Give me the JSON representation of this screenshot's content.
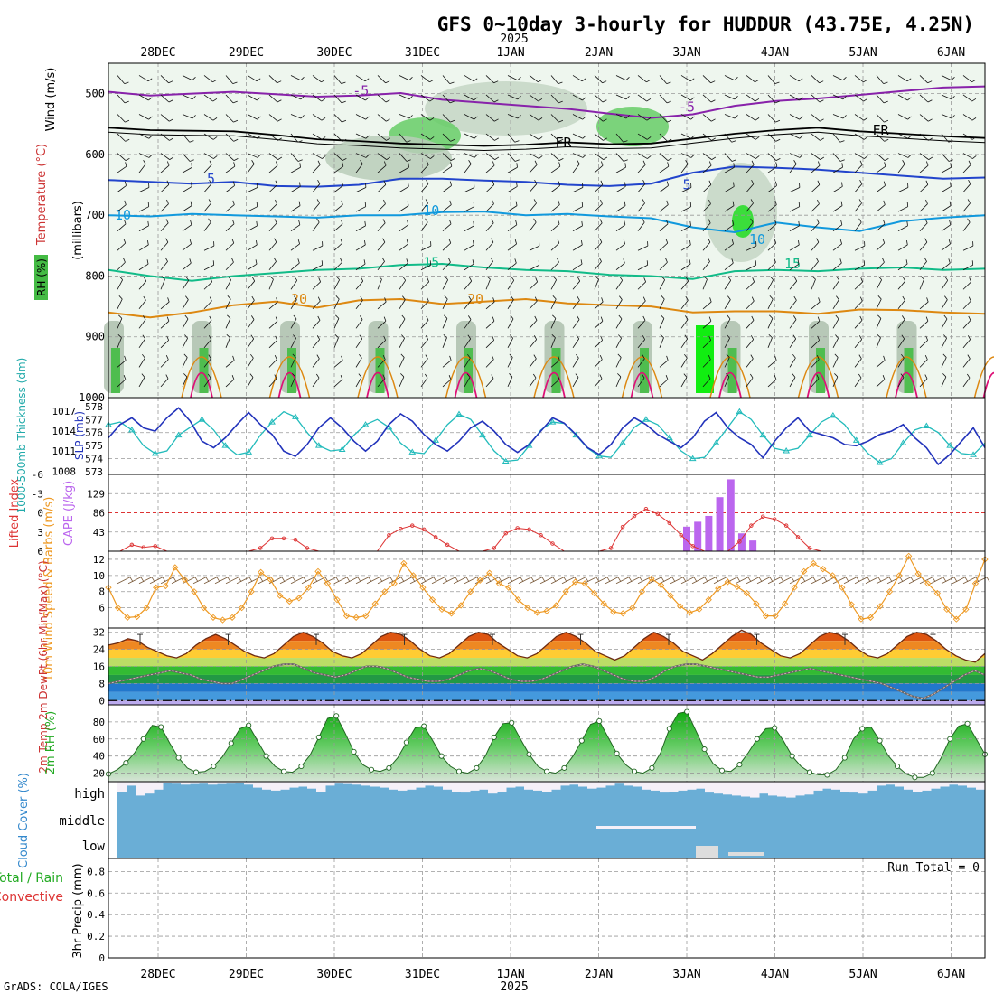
{
  "title": "GFS 0~10day 3-hourly for HUDDUR (43.75E, 4.25N)",
  "year_label": "2025",
  "footer": "GrADS: COLA/IGES",
  "run_total": "Run Total = 0",
  "colors": {
    "temp": "#cc3333",
    "rh_green": "#33bb33",
    "wind_orange": "#ee9922",
    "slp_blue": "#2233bb",
    "thick_cyan": "#22bbbb",
    "cape_violet": "#bb66ee",
    "cloud_blue": "#6aaed6",
    "frz": "#000000"
  },
  "chart_data": {
    "type": "meteogram",
    "x_dates": [
      "28DEC",
      "29DEC",
      "30DEC",
      "31DEC",
      "1JAN",
      "2JAN",
      "3JAN",
      "4JAN",
      "5JAN",
      "6JAN"
    ],
    "panels": [
      {
        "id": "upper_air",
        "ylabel": "(millibars)",
        "side_labels": [
          "RH (%)",
          "Temperature (°C)",
          "Wind (m/s)"
        ],
        "y_ticks": [
          500,
          600,
          700,
          800,
          900,
          1000
        ],
        "ylim": [
          1000,
          450
        ],
        "isotherm_labels": [
          {
            "text": "-5",
            "day": 2.3,
            "p": 495,
            "color": "#8822aa"
          },
          {
            "text": "-5",
            "day": 6.0,
            "p": 522,
            "color": "#8822aa"
          },
          {
            "text": "FR",
            "day": 4.6,
            "p": 581,
            "color": "#000000"
          },
          {
            "text": "FR",
            "day": 8.2,
            "p": 560,
            "color": "#000000"
          },
          {
            "text": "5",
            "day": 0.6,
            "p": 640,
            "color": "#2244cc"
          },
          {
            "text": "5",
            "day": 6.0,
            "p": 650,
            "color": "#2244cc"
          },
          {
            "text": "10",
            "day": -0.4,
            "p": 700,
            "color": "#1199dd"
          },
          {
            "text": "10",
            "day": 3.1,
            "p": 692,
            "color": "#1199dd"
          },
          {
            "text": "10",
            "day": 6.8,
            "p": 740,
            "color": "#1199dd"
          },
          {
            "text": "15",
            "day": 3.1,
            "p": 778,
            "color": "#11bb88"
          },
          {
            "text": "15",
            "day": 7.2,
            "p": 780,
            "color": "#11bb88"
          },
          {
            "text": "20",
            "day": 1.6,
            "p": 838,
            "color": "#dd8811"
          },
          {
            "text": "20",
            "day": 3.6,
            "p": 838,
            "color": "#dd8811"
          }
        ],
        "isotherms": [
          {
            "name": "-5",
            "color": "#8822aa",
            "p": [
              497,
              503,
              500,
              497,
              501,
              505,
              503,
              499,
              510,
              515,
              520,
              525,
              533,
              540,
              534,
              520,
              512,
              508,
              502,
              496,
              490,
              488
            ]
          },
          {
            "name": "FR",
            "color": "#000000",
            "p": [
              556,
              560,
              561,
              562,
              568,
              575,
              578,
              582,
              584,
              586,
              584,
              580,
              583,
              582,
              574,
              566,
              560,
              556,
              562,
              566,
              570,
              573
            ]
          },
          {
            "name": "5",
            "color": "#2244cc",
            "p": [
              642,
              645,
              648,
              645,
              652,
              653,
              650,
              640,
              640,
              643,
              645,
              650,
              652,
              648,
              630,
              620,
              622,
              625,
              630,
              635,
              640,
              638
            ]
          },
          {
            "name": "10",
            "color": "#1199dd",
            "p": [
              700,
              702,
              698,
              700,
              702,
              704,
              700,
              700,
              695,
              694,
              700,
              698,
              702,
              705,
              720,
              728,
              712,
              720,
              726,
              710,
              704,
              700
            ]
          },
          {
            "name": "15",
            "color": "#11bb88",
            "p": [
              790,
              800,
              808,
              800,
              795,
              790,
              788,
              782,
              780,
              786,
              790,
              792,
              798,
              800,
              805,
              792,
              790,
              792,
              788,
              786,
              790,
              788
            ]
          },
          {
            "name": "20",
            "color": "#dd8811",
            "p": [
              860,
              868,
              860,
              848,
              842,
              852,
              840,
              838,
              846,
              842,
              838,
              845,
              848,
              850,
              860,
              858,
              858,
              862,
              855,
              856,
              860,
              862
            ]
          }
        ]
      },
      {
        "id": "thickness_slp",
        "ylabel_left": "1000-500mb Thickness (dm)",
        "ylabel_right": "SLP (mb)",
        "thickness_ticks": [
          573,
          574,
          575,
          576,
          577,
          578
        ],
        "slp_ticks": [
          1008,
          1011,
          1014,
          1017
        ],
        "thickness_dm": [
          576.6,
          576.8,
          576.2,
          575.0,
          574.4,
          574.6,
          575.8,
          576.4,
          577.0,
          576.2,
          575.0,
          574.3,
          574.5,
          575.8,
          576.8,
          577.6,
          577.2,
          576.0,
          575.0,
          574.6,
          574.7,
          575.8,
          576.6,
          577.0,
          576.4,
          575.2,
          574.5,
          574.4,
          575.4,
          576.6,
          577.4,
          577.0,
          575.8,
          574.6,
          573.8,
          573.9,
          575.0,
          576.2,
          576.8,
          576.7,
          575.8,
          574.8,
          574.2,
          574.1,
          575.2,
          576.4,
          577.0,
          576.6,
          575.6,
          574.6,
          574.0,
          574.1,
          575.2,
          576.4,
          577.6,
          577.0,
          575.8,
          574.8,
          574.6,
          574.8,
          575.8,
          576.8,
          577.3,
          576.6,
          575.4,
          574.4,
          573.7,
          574.0,
          575.2,
          576.2,
          576.5,
          576.0,
          575.0,
          574.4,
          574.3,
          575.2
        ],
        "slp_mb": [
          1013.0,
          1015.0,
          1016.0,
          1014.5,
          1014.0,
          1016.0,
          1017.5,
          1015.5,
          1012.5,
          1011.5,
          1013.0,
          1015.0,
          1016.8,
          1015.0,
          1013.5,
          1011.0,
          1010.2,
          1012.0,
          1014.5,
          1016.0,
          1014.5,
          1012.5,
          1011.0,
          1012.5,
          1015.0,
          1016.6,
          1015.5,
          1013.5,
          1012.0,
          1011.0,
          1012.5,
          1014.5,
          1015.5,
          1014.0,
          1012.0,
          1010.8,
          1012.0,
          1014.0,
          1016.0,
          1015.2,
          1013.5,
          1011.5,
          1010.5,
          1012.0,
          1014.5,
          1016.0,
          1015.0,
          1013.5,
          1012.5,
          1011.5,
          1013.0,
          1015.5,
          1016.8,
          1014.5,
          1013.0,
          1012.0,
          1010.0,
          1012.5,
          1014.5,
          1016.0,
          1014.0,
          1013.5,
          1013.0,
          1012.0,
          1011.8,
          1012.5,
          1013.5,
          1014.0,
          1015.0,
          1013.0,
          1011.5,
          1009.0,
          1010.5,
          1012.5,
          1014.5,
          1011.5
        ]
      },
      {
        "id": "lifted_cape",
        "ylabel_left": "Lifted Index",
        "ylabel_right": "CAPE (J/kg)",
        "li_ticks": [
          -6,
          -3,
          0,
          3,
          6
        ],
        "cape_ticks": [
          43,
          86,
          129
        ],
        "li": [
          6,
          6,
          5,
          5.4,
          5.2,
          6,
          6,
          6,
          6,
          6,
          6,
          6,
          6,
          5.5,
          4,
          4,
          4.2,
          5.5,
          6,
          6,
          6,
          6,
          6,
          6,
          3.5,
          2.5,
          2,
          2.6,
          3.8,
          5,
          6,
          6,
          6,
          5.5,
          3.2,
          2.4,
          2.6,
          3.5,
          4.8,
          6,
          6,
          6,
          6,
          5.5,
          2.2,
          0.5,
          -0.6,
          0.2,
          1.6,
          3.5,
          5.2,
          6,
          6,
          6,
          4.5,
          2,
          0.6,
          1,
          2,
          3.8,
          5.5,
          6,
          6,
          6,
          6,
          6,
          6,
          6,
          6,
          6,
          6,
          6,
          6,
          6,
          6,
          6
        ],
        "cape_bars": [
          {
            "day": 6.0,
            "v": 55
          },
          {
            "day": 6.125,
            "v": 66
          },
          {
            "day": 6.25,
            "v": 79
          },
          {
            "day": 6.375,
            "v": 121
          },
          {
            "day": 6.5,
            "v": 161
          },
          {
            "day": 6.625,
            "v": 40
          },
          {
            "day": 6.75,
            "v": 24
          }
        ],
        "li_markers": [
          {
            "day": 5.97,
            "li": 0.2
          },
          {
            "day": 6.12,
            "li": -0.5
          },
          {
            "day": 6.25,
            "li": -1.5
          },
          {
            "day": 6.38,
            "li": -1.2
          },
          {
            "day": 6.5,
            "li": -0.2
          },
          {
            "day": 6.62,
            "li": 1
          },
          {
            "day": 6.75,
            "li": 2
          },
          {
            "day": 6.88,
            "li": 3.2
          },
          {
            "day": 7.0,
            "li": 4.5
          },
          {
            "day": 7.25,
            "li": 5
          },
          {
            "day": 7.5,
            "li": 3.5
          },
          {
            "day": 7.75,
            "li": 2.4
          },
          {
            "day": 7.88,
            "li": 2.5
          },
          {
            "day": 8.0,
            "li": 5
          }
        ]
      },
      {
        "id": "wind10m",
        "ylabel": "10m Wind Speed & Barbs (m/s)",
        "y_ticks": [
          6,
          8,
          10,
          12
        ],
        "speed_ms": [
          8.5,
          6,
          4.8,
          4.9,
          6,
          8.5,
          8.7,
          11,
          9.5,
          8,
          6,
          4.8,
          4.5,
          4.8,
          6,
          8,
          10.4,
          9.5,
          7.5,
          6.8,
          7.2,
          8.5,
          10.5,
          9,
          7,
          5,
          4.8,
          5,
          6.5,
          8,
          9,
          11.5,
          10,
          8.5,
          7,
          5.8,
          5.3,
          6.3,
          8,
          9.4,
          10.3,
          9,
          8.5,
          7,
          6,
          5.4,
          5.6,
          6.3,
          8,
          9.2,
          9,
          7.8,
          6.5,
          5.5,
          5.3,
          6,
          8,
          9.6,
          8.8,
          7.5,
          6.2,
          5.4,
          5.8,
          7,
          8.4,
          9.2,
          8.6,
          7.8,
          6.5,
          5,
          5,
          6.5,
          8.5,
          10.5,
          11.5,
          10.8,
          10,
          8.5,
          6.4,
          4.6,
          4.8,
          6.2,
          8,
          10,
          12.4,
          10.2,
          9,
          7.8,
          5.8,
          4.6,
          5.8,
          9,
          12
        ]
      },
      {
        "id": "temp2m",
        "ylabel": "2m Temp 2m DewPt (6hr Min/Max) (°C)",
        "y_ticks": [
          0,
          8,
          16,
          24,
          32
        ],
        "temp_c": [
          26,
          27,
          29,
          28,
          25,
          23,
          21,
          20,
          22,
          26,
          29,
          31,
          29,
          26,
          23,
          21,
          20,
          22,
          26,
          30,
          32,
          30,
          27,
          23,
          21,
          20,
          22,
          26,
          30,
          32,
          31,
          28,
          24,
          21,
          20,
          22,
          26,
          30,
          32,
          31,
          27,
          24,
          21,
          20,
          22,
          26,
          30,
          32,
          30,
          27,
          23,
          21,
          19,
          21,
          25,
          29,
          32,
          30,
          27,
          23,
          21,
          19,
          22,
          26,
          30,
          33,
          31,
          27,
          24,
          21,
          20,
          22,
          26,
          30,
          32,
          31,
          28,
          24,
          21,
          20,
          22,
          26,
          30,
          32,
          31,
          28,
          24,
          21,
          19,
          18,
          22
        ],
        "dewpoint_c": [
          8,
          9,
          10,
          11,
          12,
          13,
          14,
          13,
          12,
          10,
          9,
          8,
          8,
          10,
          12,
          14,
          16,
          17,
          17,
          15,
          13,
          12,
          11,
          12,
          14,
          16,
          16,
          15,
          13,
          11,
          10,
          9,
          9,
          10,
          12,
          14,
          15,
          14,
          12,
          10,
          9,
          9,
          10,
          12,
          14,
          16,
          17,
          16,
          14,
          12,
          10,
          9,
          9,
          11,
          14,
          16,
          17,
          17,
          16,
          15,
          14,
          13,
          12,
          11,
          11,
          12,
          13,
          14,
          15,
          14,
          13,
          12,
          11,
          10,
          9,
          8,
          6,
          4,
          2,
          1,
          3,
          6,
          9,
          12,
          14,
          12
        ]
      },
      {
        "id": "rh2m",
        "ylabel": "2m RH (%)",
        "y_ticks": [
          20,
          40,
          60,
          80
        ],
        "rh_pct": [
          19,
          24,
          32,
          44,
          60,
          76,
          74,
          55,
          38,
          26,
          21,
          22,
          28,
          39,
          55,
          72,
          76,
          58,
          40,
          28,
          22,
          21,
          28,
          41,
          62,
          84,
          87,
          67,
          45,
          30,
          24,
          22,
          26,
          38,
          56,
          73,
          75,
          58,
          40,
          28,
          22,
          20,
          26,
          40,
          62,
          78,
          79,
          60,
          42,
          28,
          22,
          20,
          26,
          40,
          58,
          77,
          81,
          62,
          43,
          30,
          22,
          20,
          26,
          44,
          72,
          90,
          92,
          70,
          48,
          31,
          23,
          22,
          30,
          44,
          60,
          72,
          73,
          58,
          40,
          28,
          21,
          18,
          18,
          24,
          38,
          60,
          72,
          74,
          58,
          40,
          28,
          19,
          15,
          15,
          20,
          38,
          60,
          75,
          78,
          60,
          42
        ]
      },
      {
        "id": "cloud",
        "ylabel": "Cloud Cover (%)",
        "levels": [
          "high",
          "middle",
          "low"
        ],
        "high_pct": [
          50,
          80,
          30,
          40,
          60,
          92,
          90,
          85,
          88,
          90,
          85,
          88,
          90,
          92,
          85,
          70,
          60,
          55,
          60,
          70,
          75,
          65,
          50,
          80,
          90,
          88,
          85,
          80,
          75,
          70,
          60,
          55,
          60,
          70,
          80,
          75,
          60,
          50,
          45,
          55,
          60,
          40,
          50,
          70,
          75,
          60,
          55,
          50,
          60,
          80,
          85,
          75,
          65,
          70,
          80,
          90,
          80,
          75,
          60,
          55,
          45,
          50,
          55,
          60,
          65,
          45,
          40,
          35,
          30,
          25,
          20,
          40,
          30,
          25,
          20,
          30,
          35,
          55,
          65,
          60,
          50,
          45,
          40,
          55,
          80,
          85,
          75,
          60,
          50,
          55,
          65,
          75,
          85,
          80,
          70,
          60
        ]
      },
      {
        "id": "precip",
        "ylabel": "3hr Precip (mm)",
        "side_labels": [
          "Total / Rain",
          "Convective"
        ],
        "y_ticks": [
          0,
          0.2,
          0.4,
          0.6,
          0.8
        ],
        "ylim": [
          0,
          1
        ],
        "values": []
      }
    ]
  }
}
